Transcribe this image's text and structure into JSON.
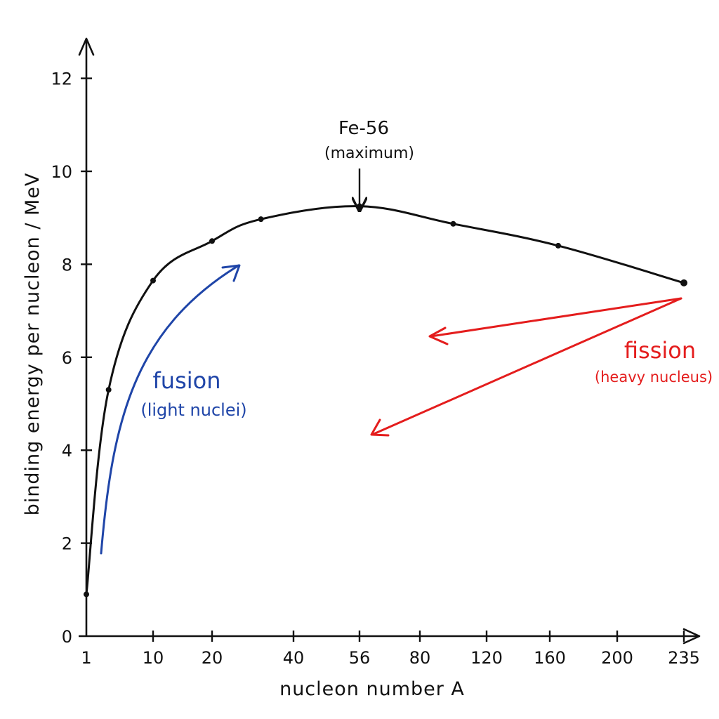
{
  "chart_data": {
    "type": "line",
    "xlabel": "nucleon number A",
    "ylabel": "binding energy per nucleon / MeV",
    "x_ticks": [
      1,
      10,
      20,
      40,
      56,
      80,
      120,
      160,
      200,
      235
    ],
    "y_ticks": [
      0,
      2,
      4,
      6,
      8,
      10,
      12
    ],
    "ylim": [
      0,
      13
    ],
    "grid": false,
    "series": [
      {
        "points": [
          {
            "x": 1,
            "y": 0.9
          },
          {
            "x": 4,
            "y": 5.3
          },
          {
            "x": 10,
            "y": 7.65
          },
          {
            "x": 20,
            "y": 8.5
          },
          {
            "x": 32,
            "y": 8.97
          },
          {
            "x": 56,
            "y": 9.25
          },
          {
            "x": 100,
            "y": 8.87
          },
          {
            "x": 165,
            "y": 8.4
          },
          {
            "x": 235,
            "y": 7.6
          }
        ]
      }
    ],
    "annotations": {
      "peak": {
        "label": "Fe-56",
        "sublabel": "(maximum)"
      },
      "fusion": {
        "label": "fusion",
        "sublabel": "(light nuclei)",
        "color": "#1f45a8"
      },
      "fission": {
        "label": "fission",
        "sublabel": "(heavy nucleus)",
        "color": "#e41d1d"
      }
    }
  }
}
